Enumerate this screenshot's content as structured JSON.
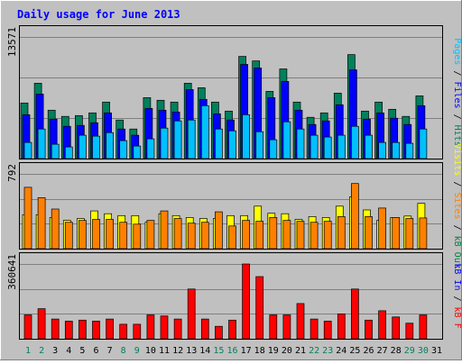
{
  "title": "Daily usage for June 2013",
  "colors": {
    "background": "#c0c0c0",
    "title": "#0000ff",
    "hits": "#00805c",
    "files": "#0000ff",
    "pages": "#00c0ff",
    "visits": "#ffff00",
    "sites": "#ff8000",
    "kb_in": "#0000ff",
    "kb_out": "#008040",
    "kb_f": "#ff0000",
    "day_weekday": "#000000",
    "day_weekend": "#00805c",
    "grid": "#808080"
  },
  "side_labels": {
    "panel1": [
      {
        "text": "Pages",
        "color": "#00c0ff"
      },
      {
        "text": " / ",
        "color": "#000000"
      },
      {
        "text": "Files",
        "color": "#0000ff"
      },
      {
        "text": " / ",
        "color": "#000000"
      },
      {
        "text": "Hits",
        "color": "#00805c"
      }
    ],
    "panel2": [
      {
        "text": "Visits",
        "color": "#ffff00"
      },
      {
        "text": " / ",
        "color": "#000000"
      },
      {
        "text": "Sites",
        "color": "#ff8000"
      },
      {
        "text": " / ",
        "color": "#000000"
      },
      {
        "text": "kB Out",
        "color": "#008040"
      }
    ],
    "panel3": [
      {
        "text": "kB In",
        "color": "#0000ff"
      },
      {
        "text": " / ",
        "color": "#000000"
      },
      {
        "text": "kB F",
        "color": "#ff0000"
      }
    ]
  },
  "chart_data": [
    {
      "type": "bar",
      "panel": "hits-files-pages",
      "ymax_label": "13571",
      "ylim": [
        0,
        13571
      ],
      "categories": [
        "1",
        "2",
        "3",
        "4",
        "5",
        "6",
        "7",
        "8",
        "9",
        "10",
        "11",
        "12",
        "13",
        "14",
        "15",
        "16",
        "17",
        "18",
        "19",
        "20",
        "21",
        "22",
        "23",
        "24",
        "25",
        "26",
        "27",
        "28",
        "29",
        "30",
        "31"
      ],
      "series": [
        {
          "name": "Hits",
          "values": [
            6200,
            8400,
            5400,
            4700,
            4800,
            5100,
            6300,
            4300,
            3300,
            6800,
            6500,
            6300,
            8400,
            7900,
            6300,
            5300,
            11400,
            10900,
            7500,
            10000,
            6300,
            4600,
            5100,
            7300,
            11600,
            5300,
            6300,
            5500,
            4700,
            7000,
            0
          ]
        },
        {
          "name": "Files",
          "values": [
            4900,
            7200,
            4400,
            3600,
            3700,
            4000,
            5100,
            3300,
            2600,
            5600,
            5400,
            5200,
            7700,
            6600,
            5000,
            4300,
            10500,
            10100,
            6800,
            8600,
            5400,
            3800,
            4200,
            6000,
            9900,
            4400,
            5100,
            4500,
            3800,
            5900,
            0
          ]
        },
        {
          "name": "Pages",
          "values": [
            1800,
            3300,
            1600,
            1300,
            2600,
            2500,
            2900,
            2000,
            1400,
            2200,
            3400,
            4200,
            4300,
            5900,
            3300,
            3100,
            4900,
            3000,
            2100,
            4100,
            3300,
            2600,
            2400,
            2600,
            3600,
            2600,
            1800,
            1800,
            1700,
            3300,
            0
          ]
        }
      ]
    },
    {
      "type": "bar",
      "panel": "visits-sites",
      "ymax_label": "792",
      "ylim": [
        0,
        792
      ],
      "categories": [
        "1",
        "2",
        "3",
        "4",
        "5",
        "6",
        "7",
        "8",
        "9",
        "10",
        "11",
        "12",
        "13",
        "14",
        "15",
        "16",
        "17",
        "18",
        "19",
        "20",
        "21",
        "22",
        "23",
        "24",
        "25",
        "26",
        "27",
        "28",
        "29",
        "30",
        "31"
      ],
      "series": [
        {
          "name": "Visits",
          "values": [
            360,
            360,
            330,
            300,
            320,
            400,
            370,
            350,
            350,
            280,
            370,
            350,
            330,
            320,
            320,
            350,
            350,
            450,
            375,
            370,
            310,
            340,
            330,
            450,
            550,
            410,
            300,
            330,
            345,
            480,
            0
          ]
        },
        {
          "name": "Sites",
          "values": [
            650,
            540,
            420,
            280,
            300,
            310,
            310,
            280,
            260,
            300,
            400,
            320,
            270,
            280,
            390,
            240,
            300,
            290,
            330,
            300,
            290,
            280,
            290,
            340,
            690,
            340,
            430,
            330,
            320,
            325,
            0
          ]
        }
      ]
    },
    {
      "type": "bar",
      "panel": "kbin-kbf",
      "ymax_label": "360641",
      "ylim": [
        0,
        360641
      ],
      "categories": [
        "1",
        "2",
        "3",
        "4",
        "5",
        "6",
        "7",
        "8",
        "9",
        "10",
        "11",
        "12",
        "13",
        "14",
        "15",
        "16",
        "17",
        "18",
        "19",
        "20",
        "21",
        "22",
        "23",
        "24",
        "25",
        "26",
        "27",
        "28",
        "29",
        "30",
        "31"
      ],
      "series": [
        {
          "name": "kB F",
          "values": [
            115000,
            145000,
            95000,
            85000,
            90000,
            85000,
            95000,
            70000,
            70000,
            115000,
            110000,
            95000,
            240000,
            95000,
            60000,
            90000,
            360641,
            300000,
            115000,
            115000,
            170000,
            95000,
            85000,
            120000,
            240000,
            90000,
            135000,
            105000,
            75000,
            115000,
            0
          ]
        }
      ]
    }
  ],
  "days": [
    {
      "label": "1",
      "weekend": true
    },
    {
      "label": "2",
      "weekend": true
    },
    {
      "label": "3",
      "weekend": false
    },
    {
      "label": "4",
      "weekend": false
    },
    {
      "label": "5",
      "weekend": false
    },
    {
      "label": "6",
      "weekend": false
    },
    {
      "label": "7",
      "weekend": false
    },
    {
      "label": "8",
      "weekend": true
    },
    {
      "label": "9",
      "weekend": true
    },
    {
      "label": "10",
      "weekend": false
    },
    {
      "label": "11",
      "weekend": false
    },
    {
      "label": "12",
      "weekend": false
    },
    {
      "label": "13",
      "weekend": false
    },
    {
      "label": "14",
      "weekend": false
    },
    {
      "label": "15",
      "weekend": true
    },
    {
      "label": "16",
      "weekend": true
    },
    {
      "label": "17",
      "weekend": false
    },
    {
      "label": "18",
      "weekend": false
    },
    {
      "label": "19",
      "weekend": false
    },
    {
      "label": "20",
      "weekend": false
    },
    {
      "label": "21",
      "weekend": false
    },
    {
      "label": "22",
      "weekend": true
    },
    {
      "label": "23",
      "weekend": true
    },
    {
      "label": "24",
      "weekend": false
    },
    {
      "label": "25",
      "weekend": false
    },
    {
      "label": "26",
      "weekend": false
    },
    {
      "label": "27",
      "weekend": false
    },
    {
      "label": "28",
      "weekend": false
    },
    {
      "label": "29",
      "weekend": true
    },
    {
      "label": "30",
      "weekend": true
    },
    {
      "label": "31",
      "weekend": false
    }
  ]
}
